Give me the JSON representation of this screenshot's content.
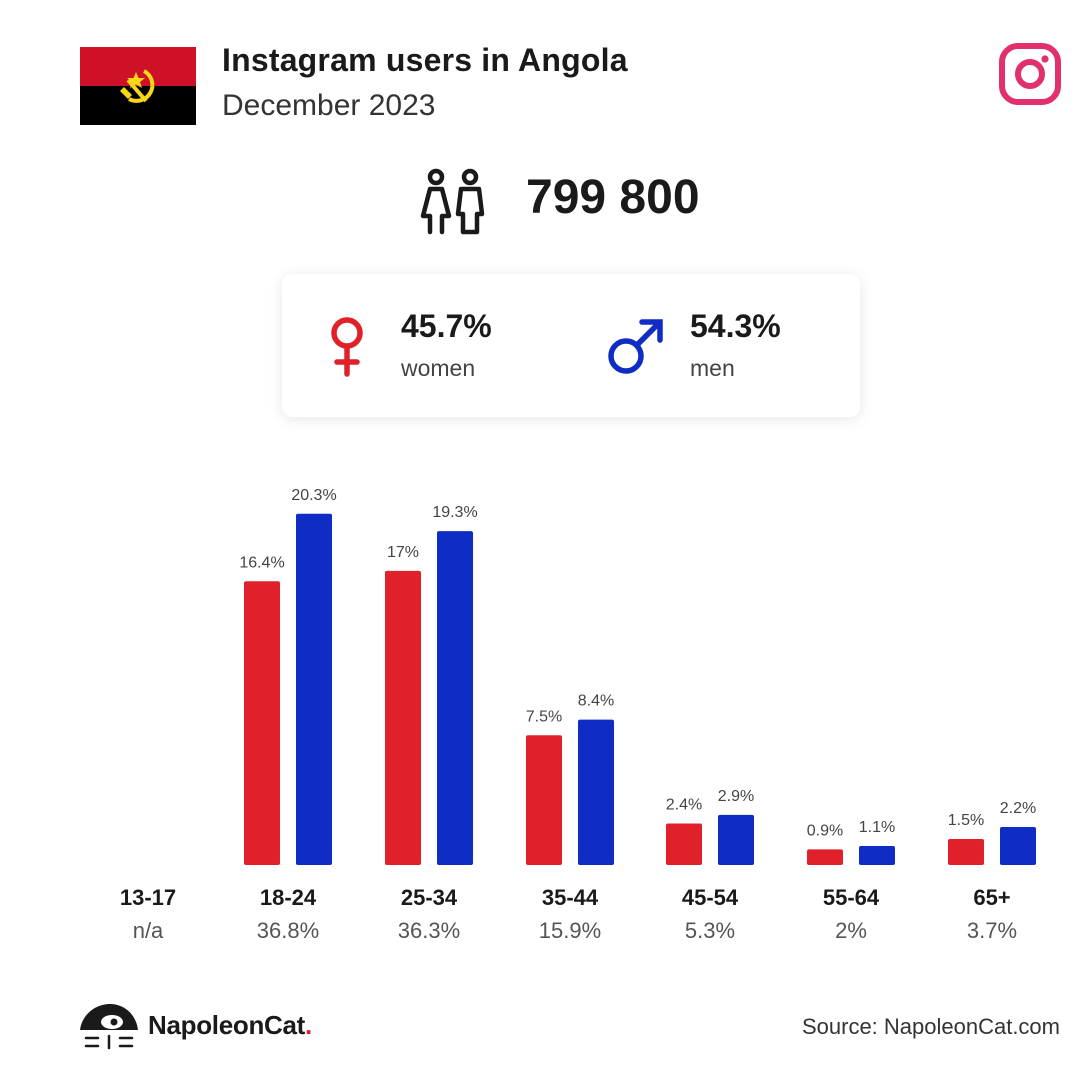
{
  "header": {
    "title": "Instagram users in Angola",
    "subtitle": "December 2023"
  },
  "total_users": "799 800",
  "gender": {
    "women_pct": "45.7%",
    "women_label": "women",
    "men_pct": "54.3%",
    "men_label": "men"
  },
  "colors": {
    "women": "#e0212a",
    "men": "#0f2cc4",
    "instagram": "#e1306c",
    "flag_red": "#ce1126",
    "flag_black": "#000000",
    "flag_emblem": "#f9d616"
  },
  "icons": {
    "flag": "angola-flag-icon",
    "brand": "instagram-icon",
    "users": "people-icon",
    "female": "female-symbol-icon",
    "male": "male-symbol-icon",
    "logo": "napoleoncat-logo-icon"
  },
  "chart_data": {
    "type": "bar",
    "categories": [
      "13-17",
      "18-24",
      "25-34",
      "35-44",
      "45-54",
      "55-64",
      "65+"
    ],
    "category_totals": [
      "n/a",
      "36.8%",
      "36.3%",
      "15.9%",
      "5.3%",
      "2%",
      "3.7%"
    ],
    "series": [
      {
        "color": "#e0212a",
        "values": [
          null,
          16.4,
          17,
          7.5,
          2.4,
          0.9,
          1.5
        ],
        "labels": [
          "",
          "16.4%",
          "17%",
          "7.5%",
          "2.4%",
          "0.9%",
          "1.5%"
        ]
      },
      {
        "color": "#0f2cc4",
        "values": [
          null,
          20.3,
          19.3,
          8.4,
          2.9,
          1.1,
          2.2
        ],
        "labels": [
          "",
          "20.3%",
          "19.3%",
          "8.4%",
          "2.9%",
          "1.1%",
          "2.2%"
        ]
      }
    ],
    "grid": false,
    "legend": "none"
  },
  "footer": {
    "brand_name": "NapoleonCat",
    "brand_dot": ".",
    "source": "Source: NapoleonCat.com"
  }
}
